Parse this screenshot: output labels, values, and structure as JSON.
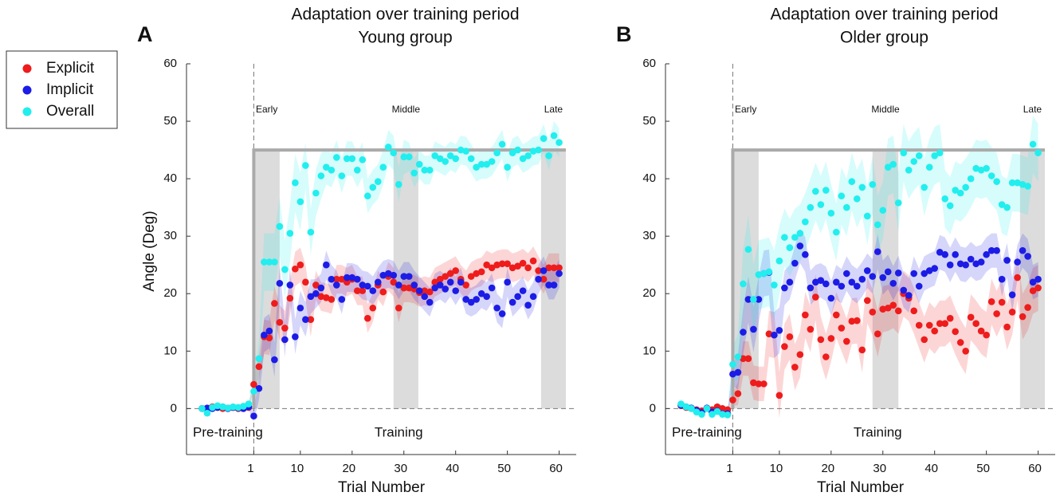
{
  "chart_data": [
    {
      "type": "scatter",
      "panel": "A",
      "title": "Adaptation over training period",
      "subtitle": "Young group",
      "xlabel": "Trial Number",
      "ylabel": "Angle (Deg)",
      "xlim": [
        -12,
        63.3
      ],
      "xticks": [
        1,
        10,
        20,
        30,
        40,
        50,
        60
      ],
      "ylim": [
        -8,
        60
      ],
      "yticks": [
        0,
        10,
        20,
        30,
        40,
        50,
        60
      ],
      "annotations": [
        {
          "text": "Pre-training",
          "x": -4
        },
        {
          "text": "Training",
          "x": 29
        }
      ],
      "regions": [
        {
          "label": "Early",
          "range": [
            1,
            6
          ]
        },
        {
          "label": "Middle",
          "range": [
            28,
            32.8
          ]
        },
        {
          "label": "Late",
          "range": [
            56.5,
            61.3
          ]
        }
      ],
      "target": {
        "value": 45,
        "range": [
          1,
          61.3
        ]
      },
      "x": [
        -9,
        -8,
        -7,
        -6,
        -5,
        -4,
        -3,
        -2,
        -1,
        0,
        1,
        2,
        3,
        4,
        5,
        6,
        7,
        8,
        9,
        10,
        11,
        12,
        13,
        14,
        15,
        16,
        17,
        18,
        19,
        20,
        21,
        22,
        23,
        24,
        25,
        26,
        27,
        28,
        29,
        30,
        31,
        32,
        33,
        34,
        35,
        36,
        37,
        38,
        39,
        40,
        41,
        42,
        43,
        44,
        45,
        46,
        47,
        48,
        49,
        50,
        51,
        52,
        53,
        54,
        55,
        56,
        57,
        58,
        59,
        60
      ],
      "series": [
        {
          "name": "Explicit",
          "color": "#ee1c1c",
          "values": [
            0,
            0,
            0.3,
            0.2,
            0,
            0.1,
            0.2,
            0,
            0,
            0.2,
            4.2,
            7.3,
            12.5,
            12.3,
            18.3,
            15,
            14,
            19.2,
            24.3,
            25,
            22,
            15.5,
            21.5,
            19.5,
            19.3,
            19,
            22.5,
            22.5,
            22,
            22.5,
            20.5,
            20.5,
            15.7,
            17.5,
            21.5,
            20.3,
            23,
            22,
            17.5,
            21,
            21,
            20.8,
            20.2,
            20.5,
            20.3,
            22,
            22.5,
            23,
            23.5,
            24,
            22.5,
            21.5,
            23,
            23.5,
            23.8,
            25,
            24.5,
            25,
            25.2,
            25.2,
            24.5,
            24.8,
            25.3,
            24.5,
            25.7,
            24,
            22.5,
            24.5,
            24.5,
            24.5
          ],
          "error": [
            0.5,
            0.5,
            0.5,
            0.5,
            0.5,
            0.5,
            0.5,
            0.5,
            0.5,
            0.5,
            1,
            2,
            3,
            3,
            3,
            3,
            3,
            3,
            3,
            3,
            3,
            3,
            2.5,
            2.5,
            2.5,
            2.5,
            2.5,
            2.5,
            2.5,
            2.5,
            2.5,
            2.5,
            2.5,
            2.5,
            2.5,
            2.5,
            2.5,
            2.5,
            2.5,
            2.5,
            2.5,
            2.5,
            2.5,
            2.5,
            2.5,
            2.5,
            2.5,
            2.5,
            2.5,
            2.5,
            2.5,
            2.5,
            2.5,
            2.5,
            2.5,
            2.5,
            2.5,
            2.5,
            2.5,
            2.5,
            2.5,
            2.5,
            2.5,
            2.5,
            2.5,
            2.5,
            2.5,
            2.5,
            2.5,
            2.5
          ]
        },
        {
          "name": "Implicit",
          "color": "#1c1ce6",
          "values": [
            0,
            0.1,
            0,
            0.2,
            0.3,
            0,
            0.2,
            0.1,
            0,
            0.3,
            -1.3,
            3.5,
            12.8,
            13.5,
            8.5,
            21.8,
            12,
            21.5,
            12.5,
            17.5,
            15.5,
            19.5,
            20,
            21,
            25,
            22.5,
            21.5,
            19,
            22.8,
            22.8,
            22.5,
            21.5,
            21.3,
            20.5,
            22,
            23.2,
            23.5,
            23.2,
            21.5,
            23,
            23,
            21.5,
            20.5,
            19.5,
            18.5,
            21,
            21.5,
            20.8,
            22,
            20.5,
            22,
            19,
            18.5,
            19,
            20,
            19.5,
            21,
            17.5,
            16.5,
            22,
            18.5,
            19.5,
            20.5,
            18,
            19.5,
            22.5,
            24,
            21.5,
            21.5,
            23.5
          ],
          "error": [
            0.5,
            0.5,
            0.5,
            0.5,
            0.5,
            0.5,
            0.5,
            0.5,
            0.5,
            0.5,
            1,
            2,
            3,
            3,
            3,
            3,
            3,
            3,
            3,
            3,
            3,
            3,
            2.5,
            2.5,
            2.5,
            2.5,
            2.5,
            2.5,
            2.5,
            2.5,
            2.5,
            2.5,
            2.5,
            2.5,
            2.5,
            2.5,
            2.5,
            2.5,
            2.5,
            2.5,
            2.5,
            2.5,
            2.5,
            2.5,
            2.5,
            2.5,
            2.5,
            2.5,
            2.5,
            2.5,
            2.5,
            2.5,
            2.5,
            2.5,
            2.5,
            2.5,
            2.5,
            2.5,
            2.5,
            2.5,
            2.5,
            2.5,
            2.5,
            2.5,
            2.5,
            2.5,
            2.5,
            2.5,
            2.5,
            2.5
          ]
        },
        {
          "name": "Overall",
          "color": "#22eeee",
          "values": [
            0,
            -0.8,
            0.2,
            0.5,
            0.3,
            0.1,
            0.3,
            0.2,
            0.4,
            0.8,
            3,
            8.7,
            25.5,
            25.5,
            25.5,
            31.7,
            24.2,
            30.5,
            39.3,
            36,
            42.3,
            30.7,
            37.5,
            40.5,
            42,
            41.5,
            43.7,
            40.5,
            43.5,
            43.5,
            41.5,
            43.3,
            37,
            38.5,
            39.5,
            42,
            45.5,
            44.5,
            39,
            43.8,
            43.8,
            41,
            42.5,
            41.5,
            41.5,
            44,
            43.5,
            43,
            44,
            43.5,
            45,
            44.8,
            43.5,
            42,
            42.5,
            42.5,
            43,
            44.5,
            46,
            42,
            44.5,
            45,
            43.5,
            44,
            44.8,
            45,
            47,
            44,
            47.5,
            46.3
          ],
          "error": [
            0.5,
            0.5,
            0.5,
            0.5,
            0.5,
            0.5,
            0.5,
            0.5,
            0.5,
            0.5,
            2,
            3,
            5,
            5,
            5,
            5,
            5,
            5,
            5,
            5,
            4,
            4,
            4,
            4,
            3,
            3,
            3,
            3,
            3,
            3,
            3,
            3,
            3,
            3,
            3,
            3,
            3,
            3,
            3,
            3,
            2.5,
            2.5,
            2.5,
            2.5,
            2.5,
            2.5,
            2.5,
            2.5,
            2.5,
            2.5,
            2.5,
            2.5,
            2.5,
            2.5,
            2.5,
            2.5,
            2.5,
            2.5,
            2.5,
            2.5,
            2.5,
            2.5,
            2.5,
            2.5,
            2.5,
            2.5,
            2.5,
            2.5,
            2.5,
            2.5
          ]
        }
      ]
    },
    {
      "type": "scatter",
      "panel": "B",
      "title": "Adaptation over training period",
      "subtitle": "Older group",
      "xlabel": "Trial Number",
      "xlim": [
        -12,
        63.3
      ],
      "xticks": [
        1,
        10,
        20,
        30,
        40,
        50,
        60
      ],
      "ylim": [
        -8,
        60
      ],
      "yticks": [
        0,
        10,
        20,
        30,
        40,
        50,
        60
      ],
      "annotations": [
        {
          "text": "Pre-training",
          "x": -4
        },
        {
          "text": "Training",
          "x": 29
        }
      ],
      "regions": [
        {
          "label": "Early",
          "range": [
            1,
            6
          ]
        },
        {
          "label": "Middle",
          "range": [
            28,
            33
          ]
        },
        {
          "label": "Late",
          "range": [
            56.5,
            61.3
          ]
        }
      ],
      "target": {
        "value": 45,
        "range": [
          1,
          61.3
        ]
      },
      "x": [
        -9,
        -8,
        -7,
        -6,
        -5,
        -4,
        -3,
        -2,
        -1,
        0,
        1,
        2,
        3,
        4,
        5,
        6,
        7,
        8,
        9,
        10,
        11,
        12,
        13,
        14,
        15,
        16,
        17,
        18,
        19,
        20,
        21,
        22,
        23,
        24,
        25,
        26,
        27,
        28,
        29,
        30,
        31,
        32,
        33,
        34,
        35,
        36,
        37,
        38,
        39,
        40,
        41,
        42,
        43,
        44,
        45,
        46,
        47,
        48,
        49,
        50,
        51,
        52,
        53,
        54,
        55,
        56,
        57,
        58,
        59,
        60
      ],
      "series": [
        {
          "name": "Explicit",
          "color": "#ee1c1c",
          "values": [
            0.5,
            0.2,
            0,
            -0.2,
            -0.4,
            0,
            -0.2,
            0.3,
            0,
            -0.2,
            1.5,
            2.6,
            8.7,
            8.7,
            4.5,
            4.3,
            4.3,
            13,
            12.8,
            2.3,
            10.8,
            12.5,
            7.2,
            9.4,
            16.3,
            13.8,
            19.4,
            12,
            9,
            12.2,
            16.3,
            14,
            11.7,
            15.2,
            15.3,
            10.2,
            18.8,
            16.8,
            13,
            17.3,
            17.5,
            18,
            17,
            20,
            19.2,
            17,
            14.5,
            12,
            14.5,
            13.5,
            14.8,
            14.8,
            15.7,
            13.4,
            11.5,
            10,
            15.9,
            14.8,
            13.5,
            12.8,
            18.6,
            16.5,
            18.5,
            14.2,
            16.8,
            22.8,
            16,
            17.6,
            20.5,
            21
          ],
          "error": [
            0.5,
            0.5,
            0.5,
            0.5,
            0.5,
            0.5,
            0.5,
            0.5,
            0.5,
            0.5,
            1,
            2,
            3,
            3,
            3,
            3,
            3,
            4,
            4,
            4,
            4,
            4,
            4,
            4,
            4,
            4,
            4,
            4,
            4,
            4,
            4,
            4,
            4,
            4,
            4,
            4,
            4,
            4,
            4,
            4,
            4,
            4,
            4,
            4,
            4,
            4,
            4,
            4,
            4,
            4,
            4,
            4,
            4,
            4,
            4,
            4,
            4,
            4,
            4,
            4,
            4,
            4,
            4,
            4,
            4,
            4,
            4,
            4,
            4,
            4
          ]
        },
        {
          "name": "Implicit",
          "color": "#1c1ce6",
          "values": [
            0.6,
            0.3,
            0.1,
            -0.3,
            -0.7,
            0.1,
            -0.6,
            -0.4,
            -0.9,
            -0.9,
            6,
            6.3,
            13.3,
            19,
            13.8,
            19,
            23.5,
            23.7,
            12.8,
            13.6,
            21,
            22,
            25.3,
            28.3,
            26.8,
            21,
            22,
            22.3,
            21.7,
            19.2,
            22,
            21.3,
            23.5,
            22,
            21.3,
            22.5,
            24,
            23,
            27.3,
            22.8,
            23.8,
            21.8,
            23.6,
            20.6,
            19.7,
            23.5,
            21.3,
            23.5,
            24,
            24.4,
            27.2,
            26.8,
            25,
            26.8,
            25.2,
            25,
            26,
            25.2,
            25.5,
            26.8,
            27.5,
            27.5,
            22.5,
            25.8,
            19.8,
            25.5,
            27.5,
            26.5,
            22,
            22.5
          ],
          "error": [
            0.5,
            0.5,
            0.5,
            0.5,
            0.5,
            0.5,
            0.5,
            0.5,
            0.5,
            0.5,
            2,
            3,
            4,
            4,
            4,
            4,
            4,
            4,
            4,
            4,
            3,
            3,
            3,
            3,
            3,
            3,
            3,
            3,
            3,
            3,
            3,
            3,
            3,
            3,
            3,
            3,
            3,
            3,
            3,
            3,
            3,
            3,
            3,
            3,
            3,
            3,
            3,
            3,
            3,
            3,
            3,
            3,
            3,
            3,
            3,
            3,
            3,
            3,
            3,
            3,
            3,
            3,
            3,
            3,
            3,
            3,
            3,
            3,
            3,
            3
          ]
        },
        {
          "name": "Overall",
          "color": "#22eeee",
          "values": [
            0.8,
            0.3,
            0,
            -0.6,
            -1,
            0,
            -1,
            -0.5,
            -1,
            -1.1,
            7.7,
            9,
            21.7,
            27.7,
            19,
            23.3,
            23.5,
            23.8,
            21.5,
            25.7,
            29.8,
            28,
            29.8,
            30.5,
            32.5,
            35,
            37.8,
            35.5,
            38,
            34,
            30.7,
            37,
            35,
            39.5,
            36.5,
            38.5,
            33.5,
            39,
            32,
            34.5,
            42,
            42.5,
            35.8,
            44.5,
            41.5,
            43,
            44,
            38.5,
            42,
            44,
            44.5,
            36.5,
            35.3,
            38,
            37.5,
            38.5,
            40,
            41.8,
            41.5,
            41.8,
            40.5,
            39.5,
            35.5,
            35,
            39.3,
            39.3,
            39,
            38.7,
            46,
            44.5
          ],
          "error": [
            0.5,
            0.5,
            0.5,
            0.5,
            0.5,
            0.5,
            0.5,
            0.5,
            0.5,
            0.5,
            3,
            4,
            6,
            6,
            6,
            6,
            6,
            6,
            6,
            6,
            5,
            5,
            5,
            5,
            5,
            5,
            5,
            5,
            5,
            5,
            5,
            5,
            5,
            5,
            5,
            5,
            5,
            5,
            5,
            5,
            5,
            5,
            5,
            5,
            5,
            5,
            5,
            5,
            5,
            5,
            5,
            5,
            5,
            5,
            5,
            5,
            5,
            5,
            5,
            5,
            5,
            5,
            5,
            5,
            5,
            5,
            5,
            5,
            5,
            5
          ]
        }
      ]
    }
  ]
}
